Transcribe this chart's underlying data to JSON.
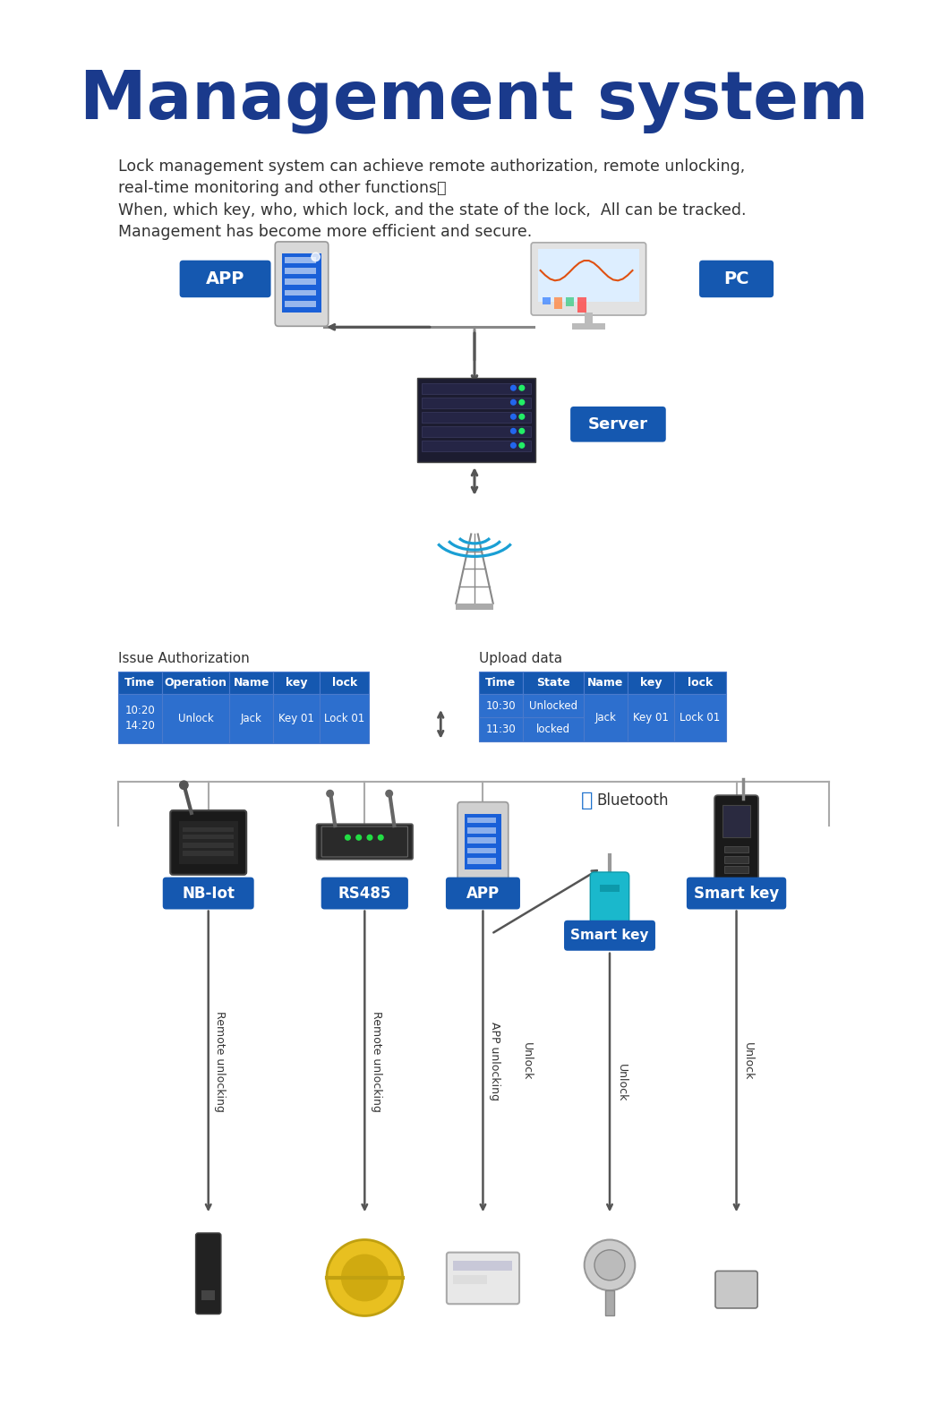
{
  "title": "Management system",
  "title_color": "#1a3a8c",
  "bg_color": "#ffffff",
  "body_lines": [
    "Lock management system can achieve remote authorization, remote unlocking,",
    "real-time monitoring and other functions。",
    "When, which key, who, which lock, and the state of the lock,  All can be tracked.",
    "Management has become more efficient and secure."
  ],
  "label_app": "APP",
  "label_pc": "PC",
  "label_server": "Server",
  "label_issue": "Issue Authorization",
  "label_upload": "Upload data",
  "table1_headers": [
    "Time",
    "Operation",
    "Name",
    "key",
    "lock"
  ],
  "table1_row": [
    "10:20\n14:20",
    "Unlock",
    "Jack",
    "Key 01",
    "Lock 01"
  ],
  "table2_headers": [
    "Time",
    "State",
    "Name",
    "key",
    "lock"
  ],
  "table2_rows": [
    [
      "10:30",
      "Unlocked"
    ],
    [
      "11:30",
      "locked"
    ]
  ],
  "table2_merged": [
    "Jack",
    "Key 01",
    "Lock 01"
  ],
  "label_nblot": "NB-Iot",
  "label_rs485": "RS485",
  "label_app2": "APP",
  "label_smartkey": "Smart key",
  "label_smartkey2": "Smart key",
  "label_remote1": "Remote unlocking",
  "label_remote2": "Remote unlocking",
  "label_appunlock": "APP unlocking",
  "label_unlock_app": "Unlock",
  "label_unlock_sk": "Unlock",
  "label_unlock_smk": "Unlock",
  "label_bluetooth": "Bluetooth",
  "header_color": "#1558b0",
  "row_color": "#2d6fce",
  "label_bg": "#1558b0",
  "label_fg": "#ffffff",
  "text_color": "#333333",
  "arrow_color": "#555555",
  "line_color": "#888888"
}
